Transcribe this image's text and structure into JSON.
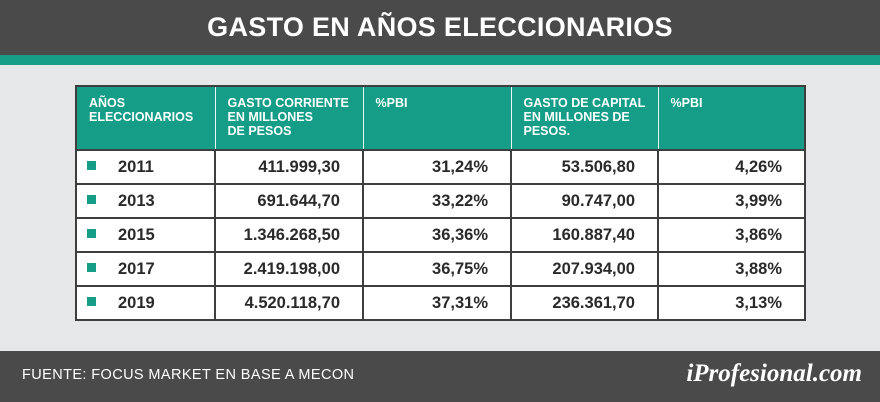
{
  "header": {
    "title": "GASTO EN AÑOS ELECCIONARIOS"
  },
  "chart_data": {
    "type": "table",
    "columns": [
      "AÑOS\nELECCIONARIOS",
      "GASTO CORRIENTE\nEN MILLONES\nDE PESOS",
      "%PBI",
      "GASTO DE CAPITAL\nEN MILLONES DE\nPESOS.",
      "%PBI"
    ],
    "rows": [
      [
        "2011",
        "411.999,30",
        "31,24%",
        "53.506,80",
        "4,26%"
      ],
      [
        "2013",
        "691.644,70",
        "33,22%",
        "90.747,00",
        "3,99%"
      ],
      [
        "2015",
        "1.346.268,50",
        "36,36%",
        "160.887,40",
        "3,86%"
      ],
      [
        "2017",
        "2.419.198,00",
        "36,75%",
        "207.934,00",
        "3,88%"
      ],
      [
        "2019",
        "4.520.118,70",
        "37,31%",
        "236.361,70",
        "3,13%"
      ]
    ]
  },
  "footer": {
    "source": "FUENTE: FOCUS MARKET EN BASE A MECON",
    "brand": "iProfesional.com"
  },
  "colors": {
    "accent": "#159d88",
    "dark": "#4a4a4a",
    "panel": "#e6e7e8"
  }
}
